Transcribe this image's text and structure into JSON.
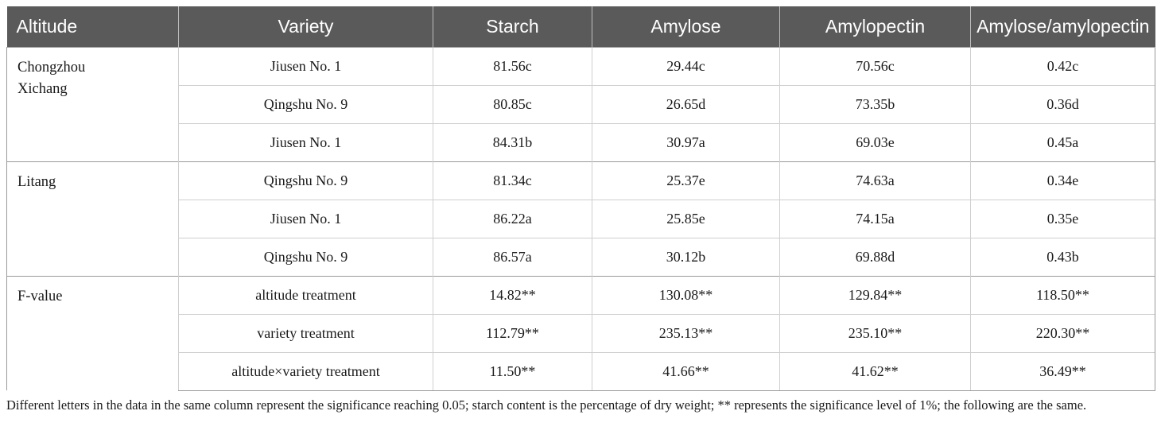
{
  "header": [
    "Altitude",
    "Variety",
    "Starch",
    "Amylose",
    "Amylopectin",
    "Amylose/amylopectin"
  ],
  "groups": [
    {
      "altitude_lines": [
        "Chongzhou",
        "Xichang"
      ],
      "rows": [
        {
          "variety": "Jiusen No. 1",
          "starch": "81.56c",
          "amylose": "29.44c",
          "amylopectin": "70.56c",
          "ratio": "0.42c"
        },
        {
          "variety": "Qingshu No. 9",
          "starch": "80.85c",
          "amylose": "26.65d",
          "amylopectin": "73.35b",
          "ratio": "0.36d"
        },
        {
          "variety": "Jiusen No. 1",
          "starch": "84.31b",
          "amylose": "30.97a",
          "amylopectin": "69.03e",
          "ratio": "0.45a"
        }
      ]
    },
    {
      "altitude_lines": [
        "Litang"
      ],
      "rows": [
        {
          "variety": "Qingshu No. 9",
          "starch": "81.34c",
          "amylose": "25.37e",
          "amylopectin": "74.63a",
          "ratio": "0.34e"
        },
        {
          "variety": "Jiusen No. 1",
          "starch": "86.22a",
          "amylose": "25.85e",
          "amylopectin": "74.15a",
          "ratio": "0.35e"
        },
        {
          "variety": "Qingshu No. 9",
          "starch": "86.57a",
          "amylose": "30.12b",
          "amylopectin": "69.88d",
          "ratio": "0.43b"
        }
      ]
    },
    {
      "altitude_lines": [
        "F-value"
      ],
      "rows": [
        {
          "variety": "altitude treatment",
          "starch": "14.82**",
          "amylose": "130.08**",
          "amylopectin": "129.84**",
          "ratio": "118.50**"
        },
        {
          "variety": "variety treatment",
          "starch": "112.79**",
          "amylose": "235.13**",
          "amylopectin": "235.10**",
          "ratio": "220.30**"
        },
        {
          "variety": "altitude×variety treatment",
          "starch": "11.50**",
          "amylose": "41.66**",
          "amylopectin": "41.62**",
          "ratio": "36.49**"
        }
      ]
    }
  ],
  "footnote": "Different letters in the data in the same column represent the significance reaching 0.05; starch content is the percentage of dry weight; ** represents the significance level of 1%; the following are the same."
}
